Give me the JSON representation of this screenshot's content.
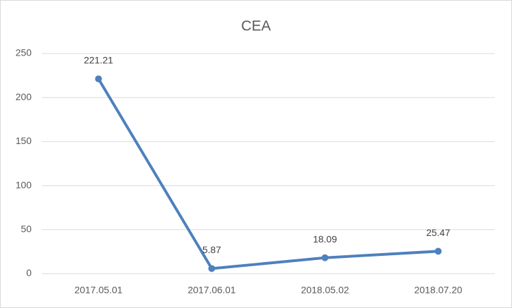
{
  "chart_data": {
    "type": "line",
    "title": "CEA",
    "categories": [
      "2017.05.01",
      "2017.06.01",
      "2018.05.02",
      "2018.07.20"
    ],
    "values": [
      221.21,
      5.87,
      18.09,
      25.47
    ],
    "color": "#4e80bd",
    "ylim": [
      0,
      250
    ],
    "yticks": [
      0,
      50,
      100,
      150,
      200,
      250
    ],
    "grid": true
  }
}
